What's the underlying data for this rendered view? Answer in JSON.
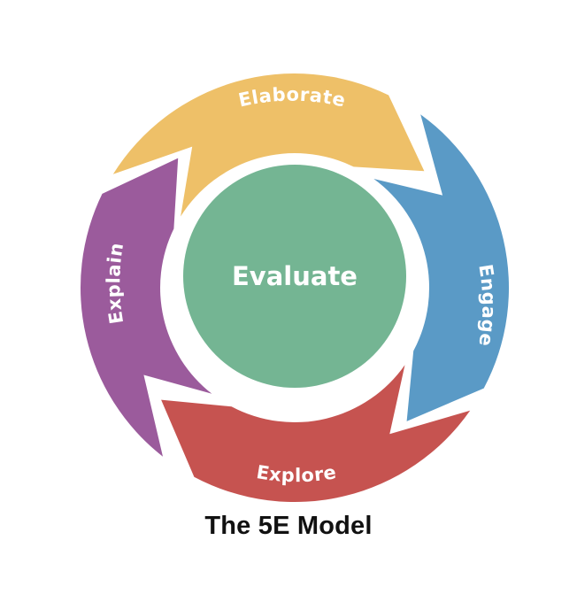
{
  "diagram": {
    "center": {
      "label": "Evaluate",
      "color": "#74b593"
    },
    "segments": [
      {
        "id": "elaborate",
        "label": "Elaborate",
        "color": "#eec068"
      },
      {
        "id": "engage",
        "label": "Engage",
        "color": "#5a9ac6"
      },
      {
        "id": "explore",
        "label": "Explore",
        "color": "#c65350"
      },
      {
        "id": "explain",
        "label": "Explain",
        "color": "#9b5b9c"
      }
    ]
  },
  "caption": "The 5E Model"
}
